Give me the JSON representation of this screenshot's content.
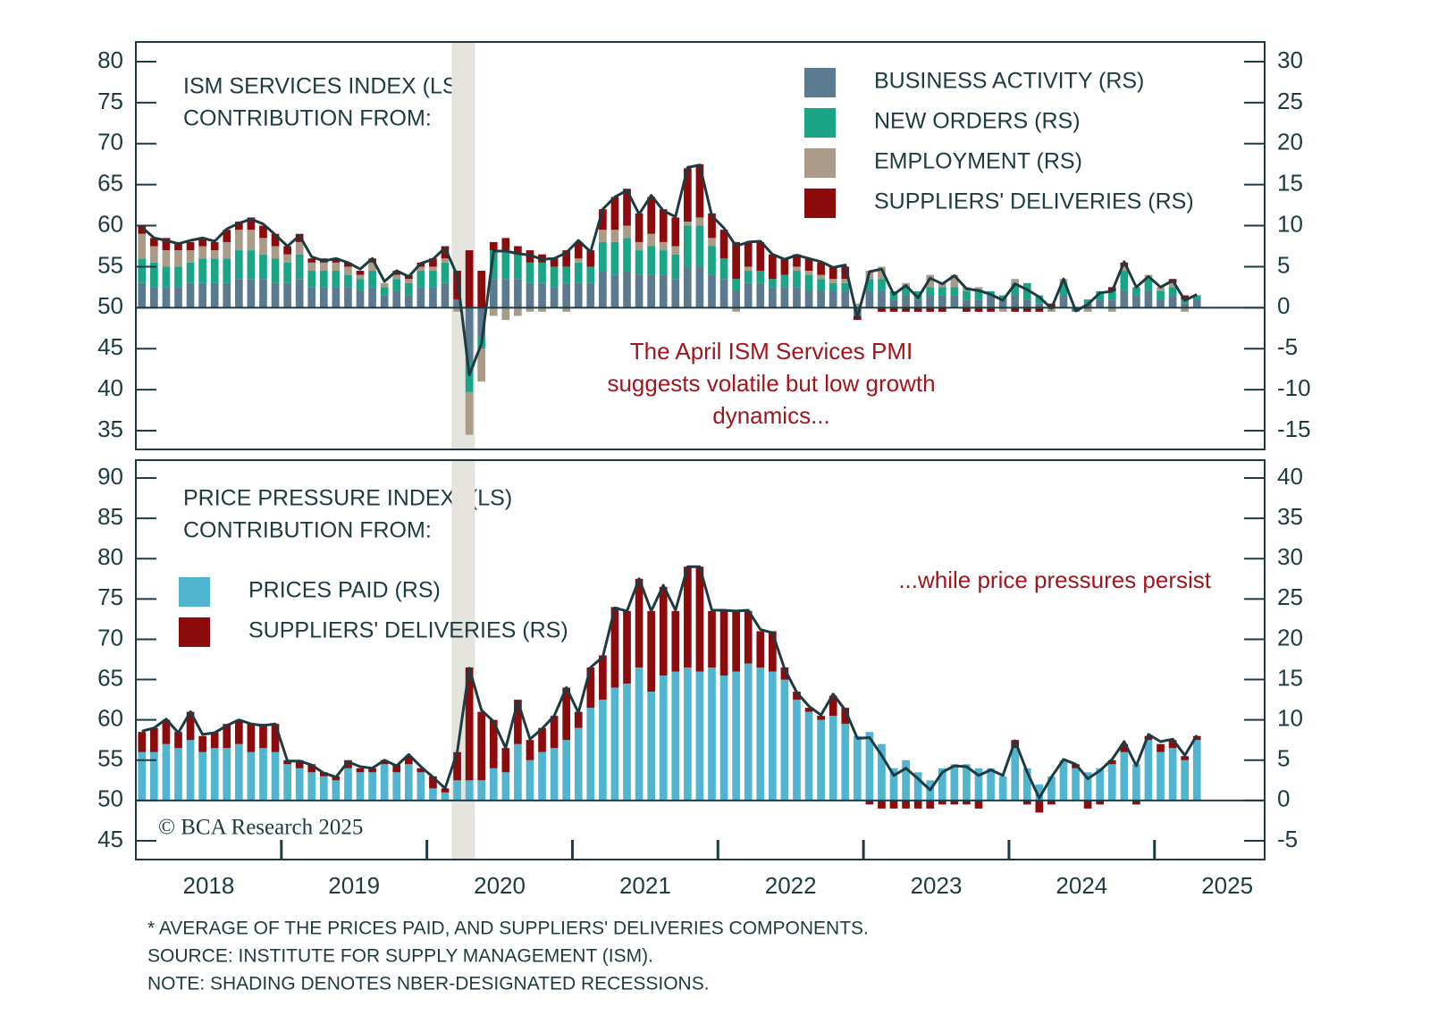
{
  "chart_data": [
    {
      "type": "bar",
      "title": "ISM SERVICES INDEX (LS)",
      "subtitle": "CONTRIBUTION FROM:",
      "annotation": [
        "The April ISM Services PMI",
        "suggests volatile but low growth",
        "dynamics..."
      ],
      "xlim": [
        2018,
        2025.757
      ],
      "ylim": [
        32.71,
        82.4
      ],
      "yticks": [
        35,
        40,
        45,
        50,
        55,
        60,
        65,
        70,
        75,
        80
      ],
      "y2lim": [
        -17.29,
        32.4
      ],
      "y2ticks": [
        -15,
        -10,
        -5,
        0,
        5,
        10,
        15,
        20,
        25,
        30
      ],
      "shading": [
        2020.17,
        2020.33
      ],
      "series": [
        {
          "name": "BUSINESS ACTIVITY (RS)",
          "color": "#5b7a90",
          "axis": "y2",
          "values": [
            3,
            2.5,
            2.5,
            2.5,
            3,
            3,
            3,
            3,
            3.5,
            3.5,
            3.5,
            3,
            3,
            3.5,
            2.5,
            2.5,
            2.5,
            2.5,
            2,
            2.5,
            1.5,
            2,
            1.5,
            2.5,
            2.5,
            3,
            1,
            -6.5,
            -3.5,
            3.5,
            3.5,
            3.5,
            3,
            3,
            2.5,
            3,
            3,
            3,
            4.5,
            4,
            4.5,
            4,
            4,
            4,
            3.5,
            5,
            5,
            4,
            3.5,
            2,
            3,
            3,
            2.5,
            2.5,
            2.5,
            2,
            2,
            2,
            2,
            -1,
            2,
            2,
            1,
            1.5,
            1,
            1.5,
            1.5,
            1.5,
            1,
            1,
            1.5,
            1,
            1.5,
            1,
            0.5,
            0,
            1.5,
            -0.5,
            0.5,
            1,
            1,
            2,
            1.5,
            2,
            1,
            1.5,
            0.5,
            1
          ]
        },
        {
          "name": "NEW ORDERS (RS)",
          "color": "#1ba587",
          "axis": "y2",
          "values": [
            3,
            3,
            2.5,
            2.5,
            2.5,
            3,
            3,
            3,
            3.5,
            3.5,
            3,
            3,
            2.5,
            3,
            2,
            2,
            2,
            1.5,
            1.5,
            2,
            1,
            1.5,
            1.5,
            2,
            2,
            2.5,
            0,
            -3.8,
            -1.5,
            3.5,
            3.5,
            3,
            2.5,
            2.5,
            2.5,
            2,
            2.5,
            2,
            3.5,
            4,
            4,
            3,
            3.5,
            3,
            3,
            5,
            5,
            3.5,
            2.5,
            1.5,
            1.5,
            1.5,
            1,
            1.5,
            2,
            2,
            1.5,
            1,
            1,
            0,
            1.5,
            1.5,
            1,
            1,
            1,
            1,
            1,
            1,
            1,
            1,
            0.5,
            0.5,
            1.5,
            2,
            1,
            0,
            1.5,
            0,
            0.5,
            1,
            1,
            2.5,
            1,
            1.5,
            1,
            1,
            0.5,
            0.5
          ]
        },
        {
          "name": "EMPLOYMENT (RS)",
          "color": "#a99b88",
          "axis": "y2",
          "values": [
            3,
            2,
            2,
            2,
            1.5,
            1.5,
            1,
            2,
            2.5,
            2.5,
            2,
            1.5,
            1,
            1.5,
            1,
            1,
            1,
            1,
            0.5,
            1,
            0.5,
            0.5,
            0.5,
            0.5,
            0.5,
            0.5,
            -0.5,
            -5.2,
            -4,
            -1,
            -1.5,
            -1,
            -0.5,
            -0.5,
            0,
            -0.5,
            0.5,
            0,
            1.5,
            1.5,
            1.5,
            1,
            1.5,
            1,
            1,
            0.5,
            1,
            1,
            0,
            -0.5,
            0.5,
            0,
            0,
            0,
            0.5,
            0.5,
            0.5,
            0.5,
            0.5,
            0.5,
            1,
            1.5,
            0,
            0.5,
            0,
            1.5,
            0.5,
            1.5,
            0.5,
            0.5,
            0,
            -0.5,
            0.5,
            0,
            0,
            -0.5,
            0.5,
            0,
            -0.5,
            0,
            -0.5,
            0.5,
            0,
            0.5,
            0.5,
            0.5,
            -0.5,
            0
          ]
        },
        {
          "name": "SUPPLIERS' DELIVERIES (RS)",
          "color": "#8c0c0e",
          "axis": "y2",
          "values": [
            1,
            1,
            1.5,
            1,
            1,
            1,
            1,
            1.5,
            1,
            1.5,
            1.5,
            1.5,
            1,
            1,
            0.5,
            0.5,
            0.5,
            0.5,
            0.5,
            0.5,
            0,
            0.5,
            0.5,
            0.5,
            1,
            1.5,
            3.5,
            7,
            4.5,
            1,
            1.5,
            1,
            1.5,
            1,
            1,
            2,
            2,
            2,
            2.5,
            4,
            4.5,
            3.5,
            4.5,
            4,
            3.5,
            6.5,
            6.5,
            3,
            3.5,
            4.5,
            3,
            3.5,
            3,
            2,
            1.5,
            1.5,
            1.5,
            1.5,
            1.5,
            -0.5,
            0,
            -0.5,
            -0.5,
            -0.5,
            -0.5,
            -0.5,
            -0.5,
            0,
            -0.5,
            -0.5,
            -0.5,
            0,
            -0.5,
            -0.5,
            -0.5,
            0.5,
            0,
            0,
            0,
            0,
            0.5,
            0.5,
            0,
            0,
            0,
            0.5,
            0.5,
            0
          ]
        }
      ],
      "line": {
        "color": "#1d3b40",
        "axis": "y",
        "values": [
          59.8,
          58.5,
          58.2,
          57.8,
          58.2,
          58.5,
          58.1,
          59.6,
          60.3,
          60.8,
          60.2,
          58.9,
          57.5,
          58.8,
          56.2,
          55.7,
          56.0,
          55.5,
          54.7,
          56.0,
          53.2,
          54.5,
          53.8,
          55.4,
          55.9,
          57.3,
          53.9,
          41.8,
          45.6,
          56.9,
          56.9,
          56.6,
          56.4,
          55.9,
          56.0,
          56.7,
          58.2,
          56.8,
          62.0,
          63.5,
          64.3,
          61.4,
          63.7,
          61.8,
          61.1,
          67.1,
          67.4,
          61.2,
          59.7,
          57.5,
          58.0,
          58.1,
          56.5,
          55.9,
          56.4,
          56.0,
          55.6,
          54.9,
          55.2,
          48.8,
          54.4,
          54.7,
          51.6,
          52.7,
          51.2,
          53.6,
          52.9,
          53.9,
          52.3,
          52.1,
          51.6,
          50.9,
          52.9,
          52.2,
          51.3,
          49.9,
          53.5,
          49.6,
          50.4,
          51.8,
          52.0,
          55.6,
          52.5,
          53.8,
          52.5,
          53.3,
          50.9,
          51.6
        ]
      }
    },
    {
      "type": "bar",
      "title": "PRICE PRESSURE INDEX* (LS)",
      "subtitle": "CONTRIBUTION FROM:",
      "annotation": [
        "...while price pressures persist"
      ],
      "watermark": "© BCA Research 2025",
      "xlim": [
        2018,
        2025.757
      ],
      "xticks": [
        {
          "value": 2018.5,
          "label": "2018"
        },
        {
          "value": 2019.5,
          "label": "2019"
        },
        {
          "value": 2020.5,
          "label": "2020"
        },
        {
          "value": 2021.5,
          "label": "2021"
        },
        {
          "value": 2022.5,
          "label": "2022"
        },
        {
          "value": 2023.5,
          "label": "2023"
        },
        {
          "value": 2024.5,
          "label": "2024"
        },
        {
          "value": 2025.5,
          "label": "2025"
        }
      ],
      "ylim": [
        42.67,
        92.22
      ],
      "yticks": [
        45,
        50,
        55,
        60,
        65,
        70,
        75,
        80,
        85,
        90
      ],
      "y2lim": [
        -7.33,
        42.22
      ],
      "y2ticks": [
        -5,
        0,
        5,
        10,
        15,
        20,
        25,
        30,
        35,
        40
      ],
      "shading": [
        2020.17,
        2020.33
      ],
      "series": [
        {
          "name": "PRICES PAID (RS)",
          "color": "#52b5d0",
          "axis": "y2",
          "values": [
            6,
            6,
            7,
            6.5,
            7.5,
            6,
            6.5,
            6.5,
            7,
            6,
            6.5,
            6,
            4.5,
            4,
            3.5,
            3,
            2.5,
            4,
            3.5,
            3.5,
            4.5,
            3.5,
            4.5,
            3.5,
            1.5,
            1,
            2.5,
            2.5,
            2.5,
            4,
            3.5,
            7,
            5,
            6,
            6.5,
            7.5,
            9,
            11.5,
            12.5,
            14,
            14.5,
            16.5,
            13.5,
            15.5,
            16,
            16.5,
            16,
            16.5,
            15.5,
            16,
            17,
            16.5,
            16,
            15,
            12.5,
            11,
            10,
            10.5,
            9.5,
            8,
            8.5,
            7,
            4,
            5,
            3.5,
            2.5,
            4,
            4.5,
            4.5,
            4,
            4,
            3,
            6.5,
            4,
            2,
            3,
            5,
            4,
            3.5,
            4,
            4.5,
            6,
            4.5,
            7.5,
            6,
            6.5,
            5,
            7.5
          ]
        },
        {
          "name": "SUPPLIERS' DELIVERIES (RS)",
          "color": "#8c0c0e",
          "axis": "y2",
          "values": [
            2.5,
            3,
            3,
            2,
            3.5,
            2,
            2,
            3,
            3,
            3.5,
            3,
            3.5,
            0.5,
            1,
            1,
            0.5,
            0.5,
            1,
            0.5,
            0.5,
            0.5,
            1,
            1,
            0.5,
            1.5,
            0.5,
            3.5,
            14,
            8.5,
            6,
            3,
            5.5,
            2.5,
            3,
            4,
            6.5,
            2,
            5,
            5.5,
            10,
            9,
            11,
            10,
            11,
            7.5,
            12.5,
            13,
            7,
            8,
            7.5,
            6.5,
            4.5,
            5,
            1.5,
            1,
            0.5,
            0.5,
            2.5,
            2,
            0,
            -0.5,
            -1,
            -1,
            -1,
            -1,
            -1,
            -0.5,
            -0.5,
            -0.5,
            -1,
            0,
            0,
            1,
            -0.5,
            -1.5,
            -0.5,
            0,
            0.5,
            -1,
            -0.5,
            0.5,
            1,
            -0.5,
            0.5,
            1,
            1,
            0.5,
            0.5
          ]
        }
      ],
      "line": {
        "color": "#1d3b40",
        "axis": "y",
        "values": [
          58.6,
          59.0,
          60.1,
          58.4,
          61.0,
          58.2,
          58.4,
          59.3,
          60.0,
          59.5,
          59.3,
          59.5,
          54.9,
          54.9,
          54.4,
          53.4,
          52.9,
          54.8,
          54.2,
          54.0,
          55.0,
          54.3,
          55.7,
          54.2,
          52.9,
          51.5,
          56.0,
          66.4,
          61.2,
          59.8,
          56.5,
          62.3,
          57.6,
          58.9,
          60.5,
          64.0,
          60.9,
          66.5,
          67.8,
          73.9,
          73.5,
          77.5,
          73.5,
          76.7,
          73.6,
          79.0,
          79.0,
          73.6,
          73.6,
          73.5,
          73.6,
          71.2,
          70.8,
          66.3,
          63.4,
          61.7,
          60.6,
          63.2,
          61.2,
          57.7,
          57.8,
          55.6,
          53.1,
          54.0,
          52.7,
          51.3,
          53.5,
          54.3,
          54.2,
          53.1,
          53.8,
          53.1,
          57.4,
          53.5,
          50.3,
          52.9,
          55.1,
          54.5,
          52.7,
          53.7,
          55.1,
          57.3,
          54.3,
          58.2,
          57.3,
          57.6,
          55.6,
          58.1
        ]
      }
    }
  ],
  "footnotes": [
    "* AVERAGE OF THE PRICES PAID, AND SUPPLIERS' DELIVERIES COMPONENTS.",
    "SOURCE: INSTITUTE FOR SUPPLY MANAGEMENT (ISM).",
    "NOTE: SHADING DENOTES NBER-DESIGNATED RECESSIONS."
  ]
}
